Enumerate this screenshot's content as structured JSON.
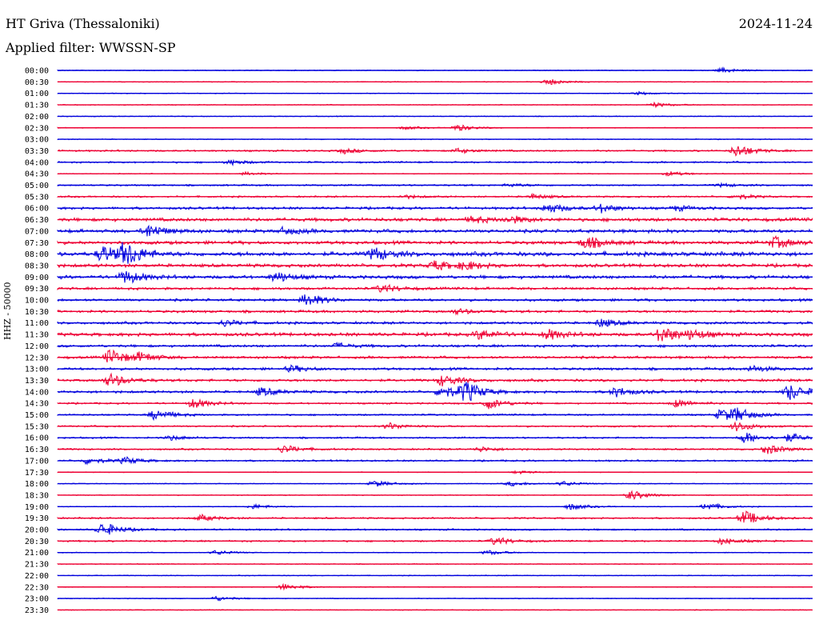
{
  "header": {
    "station": "HT Griva (Thessaloniki)",
    "date": "2024-11-24",
    "filter": "Applied filter: WWSSN-SP"
  },
  "colors": {
    "even_trace": "#0000dd",
    "odd_trace": "#ee0033"
  },
  "chart_data": {
    "type": "line",
    "title": "HT Griva (Thessaloniki)",
    "subtitle": "Applied filter: WWSSN-SP",
    "ylabel": "HHZ - 50000",
    "xlabel": "",
    "grid": false,
    "categories": [
      "00:00",
      "00:30",
      "01:00",
      "01:30",
      "02:00",
      "02:30",
      "03:00",
      "03:30",
      "04:00",
      "04:30",
      "05:00",
      "05:30",
      "06:00",
      "06:30",
      "07:00",
      "07:30",
      "08:00",
      "08:30",
      "09:00",
      "09:30",
      "10:00",
      "10:30",
      "11:00",
      "11:30",
      "12:00",
      "12:30",
      "13:00",
      "13:30",
      "14:00",
      "14:30",
      "15:00",
      "15:30",
      "16:00",
      "16:30",
      "17:00",
      "17:30",
      "18:00",
      "18:30",
      "19:00",
      "19:30",
      "20:00",
      "20:30",
      "21:00",
      "21:30",
      "22:00",
      "22:30",
      "23:00",
      "23:30"
    ],
    "noise_level": [
      1,
      1,
      1,
      1,
      1,
      1,
      1,
      2,
      2,
      1,
      2,
      2,
      3,
      4,
      4,
      4,
      5,
      4,
      4,
      3,
      3,
      3,
      3,
      4,
      3,
      3,
      3,
      3,
      3,
      2,
      2,
      2,
      2,
      2,
      2,
      1,
      1,
      1,
      1,
      2,
      2,
      2,
      1,
      1,
      1,
      1,
      1,
      1
    ],
    "events": [
      [
        [
          0.88,
          3
        ]
      ],
      [
        [
          0.65,
          4
        ]
      ],
      [
        [
          0.77,
          2
        ]
      ],
      [
        [
          0.79,
          3
        ]
      ],
      [],
      [
        [
          0.46,
          2
        ],
        [
          0.53,
          4
        ]
      ],
      [],
      [
        [
          0.38,
          3
        ],
        [
          0.53,
          3
        ],
        [
          0.9,
          8
        ]
      ],
      [
        [
          0.23,
          3
        ]
      ],
      [
        [
          0.25,
          2
        ],
        [
          0.81,
          3
        ]
      ],
      [
        [
          0.6,
          2
        ],
        [
          0.88,
          2
        ]
      ],
      [
        [
          0.46,
          2
        ],
        [
          0.63,
          3
        ],
        [
          0.9,
          3
        ]
      ],
      [
        [
          0.65,
          6
        ],
        [
          0.72,
          5
        ],
        [
          0.82,
          3
        ]
      ],
      [
        [
          0.55,
          4
        ],
        [
          0.6,
          4
        ]
      ],
      [
        [
          0.12,
          8
        ],
        [
          0.3,
          4
        ]
      ],
      [
        [
          0.7,
          8
        ],
        [
          0.95,
          7
        ]
      ],
      [
        [
          0.06,
          10
        ],
        [
          0.09,
          14
        ],
        [
          0.42,
          8
        ]
      ],
      [
        [
          0.5,
          6
        ],
        [
          0.54,
          5
        ]
      ],
      [
        [
          0.09,
          8
        ],
        [
          0.29,
          6
        ]
      ],
      [
        [
          0.43,
          5
        ]
      ],
      [
        [
          0.33,
          8
        ]
      ],
      [
        [
          0.53,
          3
        ]
      ],
      [
        [
          0.22,
          4
        ],
        [
          0.72,
          5
        ]
      ],
      [
        [
          0.56,
          6
        ],
        [
          0.65,
          6
        ],
        [
          0.8,
          10
        ],
        [
          0.84,
          5
        ]
      ],
      [
        [
          0.37,
          3
        ]
      ],
      [
        [
          0.07,
          10
        ],
        [
          0.11,
          5
        ]
      ],
      [
        [
          0.31,
          4
        ],
        [
          0.92,
          4
        ]
      ],
      [
        [
          0.07,
          8
        ],
        [
          0.51,
          7
        ]
      ],
      [
        [
          0.27,
          5
        ],
        [
          0.51,
          8
        ],
        [
          0.54,
          12
        ],
        [
          0.74,
          6
        ],
        [
          0.97,
          10
        ]
      ],
      [
        [
          0.18,
          6
        ],
        [
          0.57,
          7
        ],
        [
          0.82,
          5
        ]
      ],
      [
        [
          0.13,
          7
        ],
        [
          0.88,
          8
        ],
        [
          0.9,
          6
        ]
      ],
      [
        [
          0.44,
          4
        ],
        [
          0.9,
          6
        ]
      ],
      [
        [
          0.15,
          3
        ],
        [
          0.91,
          7
        ],
        [
          0.97,
          5
        ]
      ],
      [
        [
          0.3,
          5
        ],
        [
          0.56,
          3
        ],
        [
          0.94,
          6
        ]
      ],
      [
        [
          0.04,
          4
        ],
        [
          0.09,
          4
        ]
      ],
      [
        [
          0.61,
          2
        ]
      ],
      [
        [
          0.42,
          4
        ],
        [
          0.6,
          3
        ],
        [
          0.67,
          3
        ]
      ],
      [
        [
          0.76,
          6
        ]
      ],
      [
        [
          0.26,
          3
        ],
        [
          0.68,
          4
        ],
        [
          0.86,
          5
        ]
      ],
      [
        [
          0.19,
          4
        ],
        [
          0.91,
          9
        ]
      ],
      [
        [
          0.06,
          9
        ]
      ],
      [
        [
          0.58,
          5
        ],
        [
          0.88,
          4
        ]
      ],
      [
        [
          0.21,
          3
        ],
        [
          0.57,
          3
        ]
      ],
      [],
      [],
      [
        [
          0.3,
          4
        ]
      ],
      [
        [
          0.21,
          3
        ]
      ],
      []
    ]
  }
}
